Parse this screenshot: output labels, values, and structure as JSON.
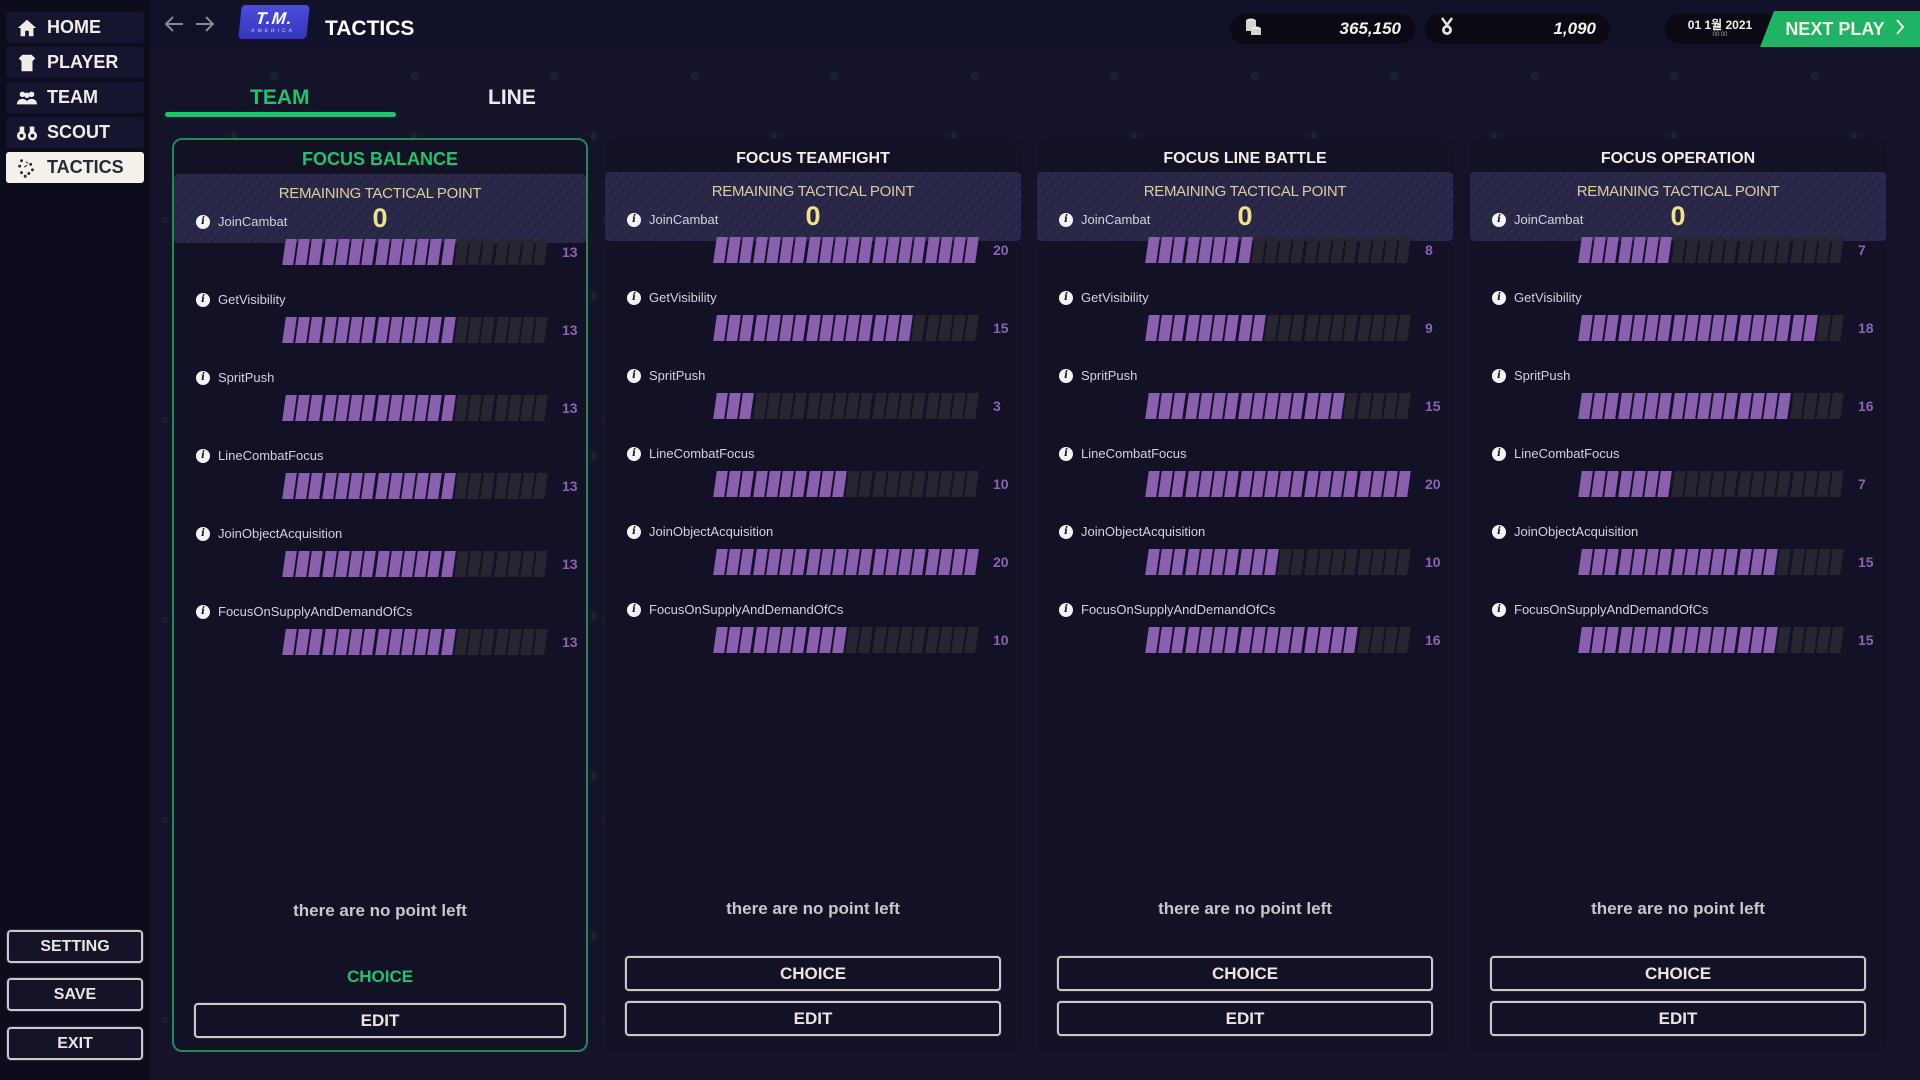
{
  "sidebar": {
    "items": [
      {
        "label": "HOME",
        "icon": "home-icon",
        "active": false
      },
      {
        "label": "PLAYER",
        "icon": "jersey-icon",
        "active": false
      },
      {
        "label": "TEAM",
        "icon": "team-icon",
        "active": false
      },
      {
        "label": "SCOUT",
        "icon": "binoculars-icon",
        "active": false
      },
      {
        "label": "TACTICS",
        "icon": "tactics-icon",
        "active": true
      }
    ],
    "bottom_buttons": [
      "SETTING",
      "SAVE",
      "EXIT"
    ]
  },
  "header": {
    "logo_main": "T.M.",
    "logo_sub": "AMERICA",
    "title": "TACTICS",
    "currency": {
      "icon": "coins-icon",
      "value": "365,150"
    },
    "fame": {
      "icon": "medal-icon",
      "value": "1,090"
    },
    "date": {
      "main": "01 1월 2021",
      "time": "00:00"
    },
    "next_play_label": "NEXT PLAY"
  },
  "tabs": [
    {
      "label": "TEAM",
      "active": true
    },
    {
      "label": "LINE",
      "active": false
    }
  ],
  "panels": [
    {
      "title": "FOCUS BALANCE",
      "selected": true,
      "remaining_label": "REMAINING TACTICAL POINT",
      "remaining_value": "0",
      "stats": [
        {
          "name": "JoinCambat",
          "value": 13
        },
        {
          "name": "GetVisibility",
          "value": 13
        },
        {
          "name": "SpritPush",
          "value": 13
        },
        {
          "name": "LineCombatFocus",
          "value": 13
        },
        {
          "name": "JoinObjectAcquisition",
          "value": 13
        },
        {
          "name": "FocusOnSupplyAndDemandOfCs",
          "value": 13
        }
      ],
      "message": "there are no point left",
      "choice_label": "CHOICE",
      "edit_label": "EDIT"
    },
    {
      "title": "FOCUS TEAMFIGHT",
      "selected": false,
      "remaining_label": "REMAINING TACTICAL POINT",
      "remaining_value": "0",
      "stats": [
        {
          "name": "JoinCambat",
          "value": 20
        },
        {
          "name": "GetVisibility",
          "value": 15
        },
        {
          "name": "SpritPush",
          "value": 3
        },
        {
          "name": "LineCombatFocus",
          "value": 10
        },
        {
          "name": "JoinObjectAcquisition",
          "value": 20
        },
        {
          "name": "FocusOnSupplyAndDemandOfCs",
          "value": 10
        }
      ],
      "message": "there are no point left",
      "choice_label": "CHOICE",
      "edit_label": "EDIT"
    },
    {
      "title": "FOCUS LINE BATTLE",
      "selected": false,
      "remaining_label": "REMAINING TACTICAL POINT",
      "remaining_value": "0",
      "stats": [
        {
          "name": "JoinCambat",
          "value": 8
        },
        {
          "name": "GetVisibility",
          "value": 9
        },
        {
          "name": "SpritPush",
          "value": 15
        },
        {
          "name": "LineCombatFocus",
          "value": 20
        },
        {
          "name": "JoinObjectAcquisition",
          "value": 10
        },
        {
          "name": "FocusOnSupplyAndDemandOfCs",
          "value": 16
        }
      ],
      "message": "there are no point left",
      "choice_label": "CHOICE",
      "edit_label": "EDIT"
    },
    {
      "title": "FOCUS OPERATION",
      "selected": false,
      "remaining_label": "REMAINING TACTICAL POINT",
      "remaining_value": "0",
      "stats": [
        {
          "name": "JoinCambat",
          "value": 7
        },
        {
          "name": "GetVisibility",
          "value": 18
        },
        {
          "name": "SpritPush",
          "value": 16
        },
        {
          "name": "LineCombatFocus",
          "value": 7
        },
        {
          "name": "JoinObjectAcquisition",
          "value": 15
        },
        {
          "name": "FocusOnSupplyAndDemandOfCs",
          "value": 15
        }
      ],
      "message": "there are no point left",
      "choice_label": "CHOICE",
      "edit_label": "EDIT"
    }
  ],
  "bar_max": 20,
  "colors": {
    "accent_green": "#20c26c",
    "bar_fill": "#8a5fb0",
    "bar_empty": "#262530",
    "points_value": "#efe28b"
  }
}
